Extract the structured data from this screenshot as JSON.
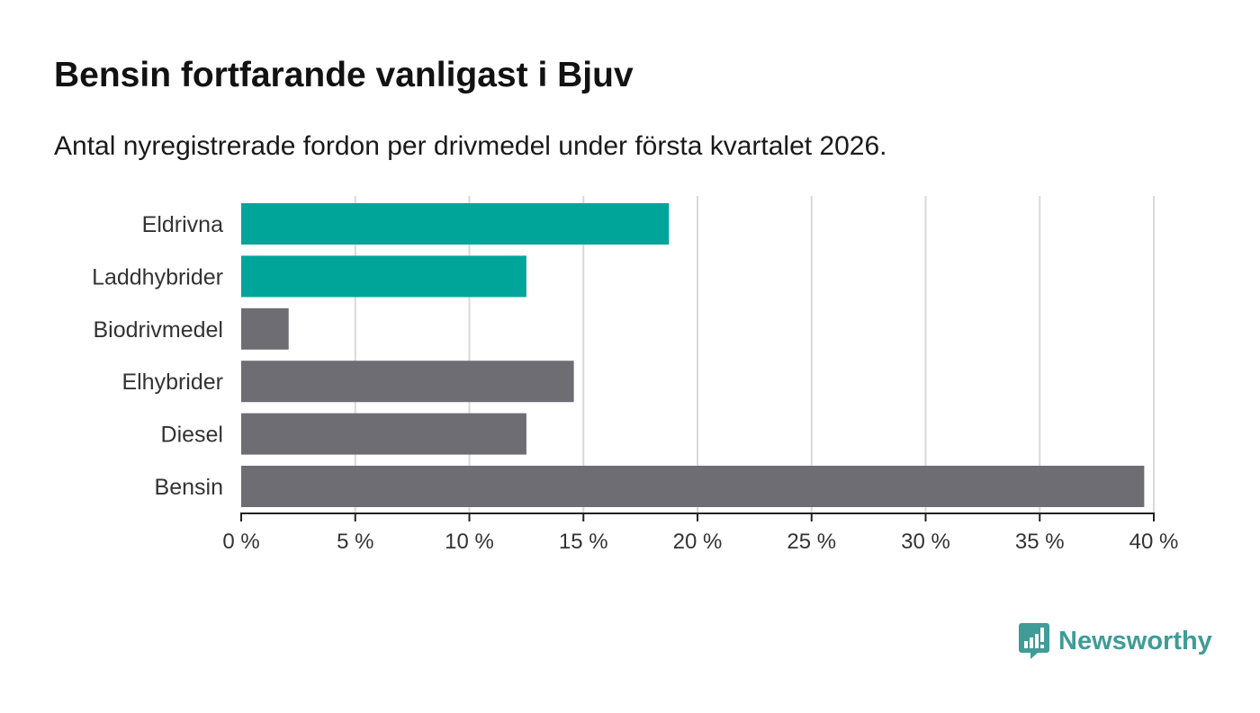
{
  "header": {
    "title": "Bensin fortfarande vanligast i Bjuv",
    "subtitle": "Antal nyregistrerade fordon per drivmedel under första kvartalet 2026."
  },
  "chart_data": {
    "type": "bar",
    "orientation": "horizontal",
    "title": "Bensin fortfarande vanligast i Bjuv",
    "subtitle": "Antal nyregistrerade fordon per drivmedel under första kvartalet 2026.",
    "categories": [
      "Eldrivna",
      "Laddhybrider",
      "Biodrivmedel",
      "Elhybrider",
      "Diesel",
      "Bensin"
    ],
    "values": [
      18.75,
      12.5,
      2.08,
      14.58,
      12.5,
      39.58
    ],
    "highlight": [
      true,
      true,
      false,
      false,
      false,
      false
    ],
    "xlim": [
      0,
      40
    ],
    "xticks": [
      0,
      5,
      10,
      15,
      20,
      25,
      30,
      35,
      40
    ],
    "xtick_labels": [
      "0 %",
      "5 %",
      "10 %",
      "15 %",
      "20 %",
      "25 %",
      "30 %",
      "35 %",
      "40 %"
    ],
    "xlabel": "",
    "ylabel": "",
    "grid": "vertical",
    "colors": {
      "highlight": "#00a59a",
      "default": "#6e6d73",
      "grid": "#d9d9d9",
      "axis": "#222222"
    }
  },
  "brand": {
    "name": "Newsworthy",
    "color": "#3f9c96",
    "icon": "newsworthy-logo-icon"
  }
}
